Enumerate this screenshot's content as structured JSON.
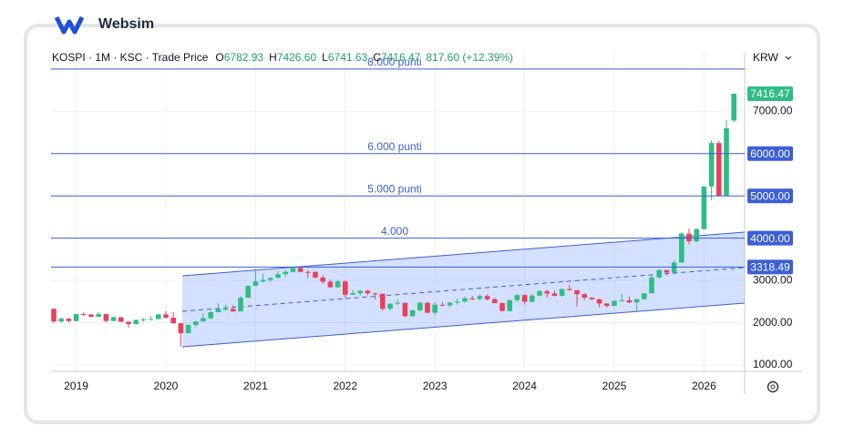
{
  "brand": "Websim",
  "header": {
    "symbol": "KOSPI · 1M · KSC · Trade Price",
    "o_key": "O",
    "o": "6782.93",
    "h_key": "H",
    "h": "7426.60",
    "l_key": "L",
    "l": "6741.63",
    "c_key": "C",
    "c": "7416.47",
    "change": "817.60 (+12.39%)",
    "currency": "KRW"
  },
  "chart_data": {
    "type": "candlestick",
    "up_color": "#2ebd85",
    "down_color": "#e8405b",
    "grid": true,
    "categories": [
      null,
      null,
      null,
      "2019",
      null,
      null,
      null,
      null,
      null,
      null,
      null,
      null,
      null,
      null,
      null,
      "2020",
      null,
      null,
      null,
      null,
      null,
      null,
      null,
      null,
      null,
      null,
      null,
      "2021",
      null,
      null,
      null,
      null,
      null,
      null,
      null,
      null,
      null,
      null,
      null,
      "2022",
      null,
      null,
      null,
      null,
      null,
      null,
      null,
      null,
      null,
      null,
      null,
      "2023",
      null,
      null,
      null,
      null,
      null,
      null,
      null,
      null,
      null,
      null,
      null,
      "2024",
      null,
      null,
      null,
      null,
      null,
      null,
      null,
      null,
      null,
      null,
      null,
      "2025",
      null,
      null,
      null,
      null,
      null,
      null,
      null,
      null,
      null,
      null,
      null,
      "2026",
      null,
      null,
      null,
      null
    ],
    "open": [
      2330,
      2030,
      2097,
      2041,
      2204,
      2195,
      2140,
      2204,
      2041,
      2130,
      2024,
      1967,
      2063,
      2083,
      2087,
      2197,
      2119,
      1987,
      1754,
      1947,
      2029,
      2108,
      2249,
      2326,
      2327,
      2267,
      2591,
      2873,
      2976,
      3013,
      3061,
      3147,
      3203,
      3296,
      3202,
      3199,
      3068,
      2970,
      2839,
      2977,
      2663,
      2699,
      2757,
      2695,
      2685,
      2332,
      2451,
      2472,
      2155,
      2293,
      2472,
      2236,
      2425,
      2412,
      2476,
      2501,
      2577,
      2564,
      2632,
      2556,
      2465,
      2277,
      2535,
      2655,
      2497,
      2642,
      2747,
      2692,
      2636,
      2797,
      2770,
      2674,
      2593,
      2556,
      2455,
      2399,
      2517,
      2532,
      2481,
      2556,
      2697,
      3071,
      3245,
      3186,
      3424,
      4107,
      3926,
      4214,
      5224,
      6250,
      5000,
      6782.93
    ],
    "high": [
      2340,
      2120,
      2110,
      2210,
      2250,
      2200,
      2250,
      2210,
      2140,
      2130,
      2030,
      2080,
      2110,
      2160,
      2210,
      2280,
      2250,
      2000,
      1960,
      2040,
      2220,
      2280,
      2460,
      2430,
      2420,
      2640,
      2880,
      3270,
      3150,
      3070,
      3220,
      3250,
      3320,
      3310,
      3240,
      3220,
      3120,
      3020,
      3020,
      3000,
      2770,
      2770,
      2780,
      2710,
      2690,
      2460,
      2550,
      2470,
      2310,
      2500,
      2490,
      2480,
      2490,
      2490,
      2570,
      2620,
      2640,
      2670,
      2670,
      2590,
      2480,
      2540,
      2680,
      2680,
      2680,
      2780,
      2780,
      2760,
      2810,
      2900,
      2780,
      2700,
      2610,
      2570,
      2460,
      2540,
      2680,
      2620,
      2560,
      2700,
      3110,
      3270,
      3250,
      3470,
      4140,
      4230,
      4230,
      5230,
      6310,
      6300,
      6800,
      7426.6
    ],
    "low": [
      1990,
      2000,
      2010,
      2030,
      2170,
      2130,
      2130,
      2010,
      2030,
      2010,
      1890,
      1960,
      2020,
      2080,
      2080,
      2100,
      1980,
      1440,
      1740,
      1900,
      2030,
      2080,
      2240,
      2290,
      2260,
      2270,
      2590,
      2870,
      2950,
      2950,
      3050,
      3090,
      3200,
      3200,
      3060,
      3060,
      2920,
      2830,
      2830,
      2590,
      2650,
      2640,
      2650,
      2550,
      2280,
      2280,
      2420,
      2130,
      2140,
      2270,
      2220,
      2180,
      2390,
      2370,
      2430,
      2470,
      2530,
      2530,
      2530,
      2460,
      2270,
      2270,
      2490,
      2430,
      2480,
      2630,
      2600,
      2620,
      2620,
      2760,
      2380,
      2540,
      2540,
      2360,
      2360,
      2390,
      2500,
      2460,
      2280,
      2550,
      2690,
      3050,
      3120,
      3150,
      3420,
      3850,
      3900,
      4200,
      4900,
      4990,
      5020,
      6741.63
    ],
    "close": [
      2030,
      2097,
      2041,
      2204,
      2195,
      2140,
      2204,
      2041,
      2130,
      2024,
      1967,
      2063,
      2083,
      2087,
      2197,
      2119,
      1987,
      1754,
      1947,
      2029,
      2108,
      2249,
      2326,
      2327,
      2267,
      2591,
      2873,
      2976,
      3013,
      3061,
      3147,
      3203,
      3296,
      3202,
      3199,
      3068,
      2970,
      2839,
      2977,
      2663,
      2699,
      2757,
      2695,
      2685,
      2332,
      2451,
      2472,
      2155,
      2293,
      2472,
      2236,
      2425,
      2412,
      2476,
      2501,
      2577,
      2564,
      2632,
      2556,
      2465,
      2277,
      2535,
      2655,
      2497,
      2642,
      2747,
      2692,
      2636,
      2797,
      2770,
      2674,
      2593,
      2556,
      2455,
      2399,
      2517,
      2532,
      2481,
      2556,
      2697,
      3071,
      3245,
      3186,
      3424,
      4107,
      3926,
      4214,
      5224,
      6250,
      5000,
      6598,
      7416.47
    ],
    "ylim": [
      850,
      8385
    ],
    "yticks": [
      {
        "value": 1000,
        "label": "1000.00"
      },
      {
        "value": 2000,
        "label": "2000.00"
      },
      {
        "value": 3000,
        "label": "3000.00"
      },
      {
        "value": 7000,
        "label": "7000.00"
      }
    ],
    "last_price": {
      "value": 7416.47,
      "label": "7416.47",
      "color": "#2ebd85"
    },
    "hline_color": "#3a5fd6",
    "hlines": [
      {
        "value": 8000,
        "label": "8.000 punti"
      },
      {
        "value": 6000,
        "label": "6.000 punti",
        "price_label": "6000.00"
      },
      {
        "value": 5000,
        "label": "5.000 punti",
        "price_label": "5000.00"
      },
      {
        "value": 4000,
        "label": "4.000",
        "price_label": "4000.00"
      },
      {
        "value": 3318.49,
        "price_label": "3318.49"
      }
    ]
  }
}
